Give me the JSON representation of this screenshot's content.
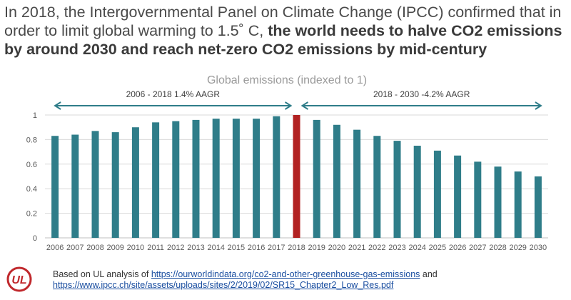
{
  "headline": {
    "part1": "In 2018, the Intergovernmental Panel on Climate Change (IPCC) confirmed that in order to limit global warming to 1.5˚ C, ",
    "bold": "the world needs to halve CO2 emissions by around 2030 and reach net-zero CO2 emissions by mid-century"
  },
  "chart_data": {
    "type": "bar",
    "title": "Global emissions (indexed to 1)",
    "categories": [
      "2006",
      "2007",
      "2008",
      "2009",
      "2010",
      "2011",
      "2012",
      "2013",
      "2014",
      "2015",
      "2016",
      "2017",
      "2018",
      "2019",
      "2020",
      "2021",
      "2022",
      "2023",
      "2024",
      "2025",
      "2026",
      "2027",
      "2028",
      "2029",
      "2030"
    ],
    "values": [
      0.83,
      0.84,
      0.87,
      0.86,
      0.9,
      0.94,
      0.95,
      0.96,
      0.97,
      0.97,
      0.97,
      0.99,
      1.0,
      0.96,
      0.92,
      0.88,
      0.83,
      0.79,
      0.75,
      0.71,
      0.67,
      0.62,
      0.58,
      0.54,
      0.5
    ],
    "highlight_category": "2018",
    "ylim": [
      0,
      1
    ],
    "yticks": [
      "0",
      "0.2",
      "0.4",
      "0.6",
      "0.8",
      "1"
    ],
    "grid": true,
    "colors": {
      "bar": "#2f7d89",
      "highlight": "#b22222",
      "grid": "#d9d9d9",
      "arrow": "#2f7d89"
    },
    "annotations": [
      {
        "text": "2006 - 2018 1.4% AAGR",
        "from": "2006",
        "to": "2018"
      },
      {
        "text": "2018 - 2030 -4.2% AAGR",
        "from": "2018",
        "to": "2030"
      }
    ]
  },
  "footer": {
    "prefix": "Based on UL analysis of ",
    "link1": "https://ourworldindata.org/co2-and-other-greenhouse-gas-emissions",
    "middle": " and",
    "link2": "https://www.ipcc.ch/site/assets/uploads/sites/2/2019/02/SR15_Chapter2_Low_Res.pdf"
  },
  "logo": {
    "text": "UL",
    "color": "#c0282c",
    "icon": "ul-logo-icon"
  }
}
